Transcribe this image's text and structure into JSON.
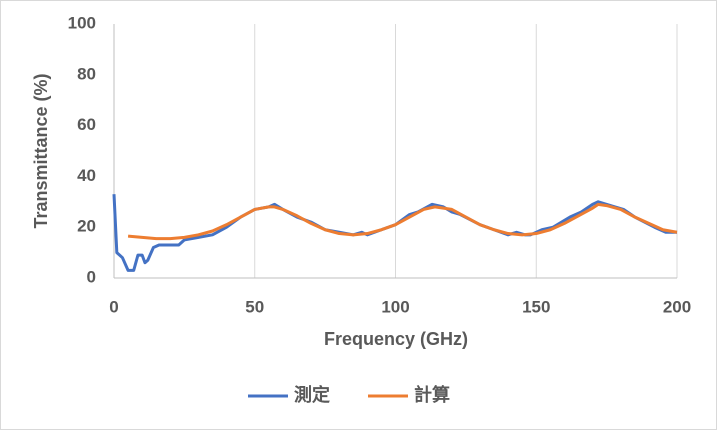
{
  "chart_data": {
    "type": "line",
    "xlabel": "Frequency  (GHz)",
    "ylabel": "Transmittance  (%)",
    "xlim": [
      0,
      200
    ],
    "xticks": [
      0,
      50,
      100,
      150,
      200
    ],
    "ylim": [
      0,
      100
    ],
    "yticks": [
      0,
      20,
      40,
      60,
      80,
      100
    ],
    "grid": "x",
    "legend": "bottom",
    "series": [
      {
        "name": "測定",
        "color": "#4472c4",
        "x": [
          0,
          1,
          3,
          5,
          7,
          8.5,
          10,
          11,
          12,
          14,
          16,
          20,
          23,
          25,
          30,
          35,
          40,
          45,
          50,
          55,
          57,
          60,
          65,
          70,
          75,
          80,
          85,
          88,
          90,
          95,
          100,
          105,
          108,
          113,
          117,
          120,
          123,
          130,
          135,
          140,
          143,
          146,
          148,
          152,
          156,
          162,
          166,
          170,
          172,
          178,
          181,
          185,
          192,
          196,
          200
        ],
        "values": [
          33,
          10,
          8,
          3,
          3,
          9,
          9,
          6,
          7,
          12,
          13,
          13,
          13,
          15,
          16,
          17,
          20,
          24,
          27,
          28,
          29,
          27,
          24,
          22,
          19,
          18,
          17,
          18,
          17,
          19,
          21,
          25,
          26,
          29,
          28,
          26,
          25,
          21,
          19,
          17,
          18,
          17,
          17,
          19,
          20,
          24,
          26,
          29,
          30,
          28,
          27,
          24,
          20,
          18,
          18
        ]
      },
      {
        "name": "計算",
        "color": "#ed7d31",
        "x": [
          5,
          10,
          15,
          20,
          25,
          30,
          35,
          40,
          45,
          50,
          55,
          57,
          60,
          65,
          70,
          75,
          80,
          85,
          90,
          95,
          100,
          105,
          110,
          114,
          120,
          125,
          130,
          135,
          140,
          145,
          150,
          155,
          160,
          165,
          170,
          172,
          175,
          180,
          185,
          190,
          195,
          200
        ],
        "values": [
          16.5,
          16,
          15.5,
          15.5,
          16,
          17,
          18.5,
          21,
          24,
          27,
          28,
          28,
          27,
          24.5,
          21.5,
          19,
          17.5,
          17,
          17.5,
          19,
          21,
          24,
          27,
          28,
          27,
          24,
          21,
          19,
          17.5,
          17,
          17.5,
          19,
          21.5,
          24.5,
          27.5,
          29,
          28.5,
          27,
          24,
          21.5,
          19,
          18
        ]
      }
    ]
  }
}
